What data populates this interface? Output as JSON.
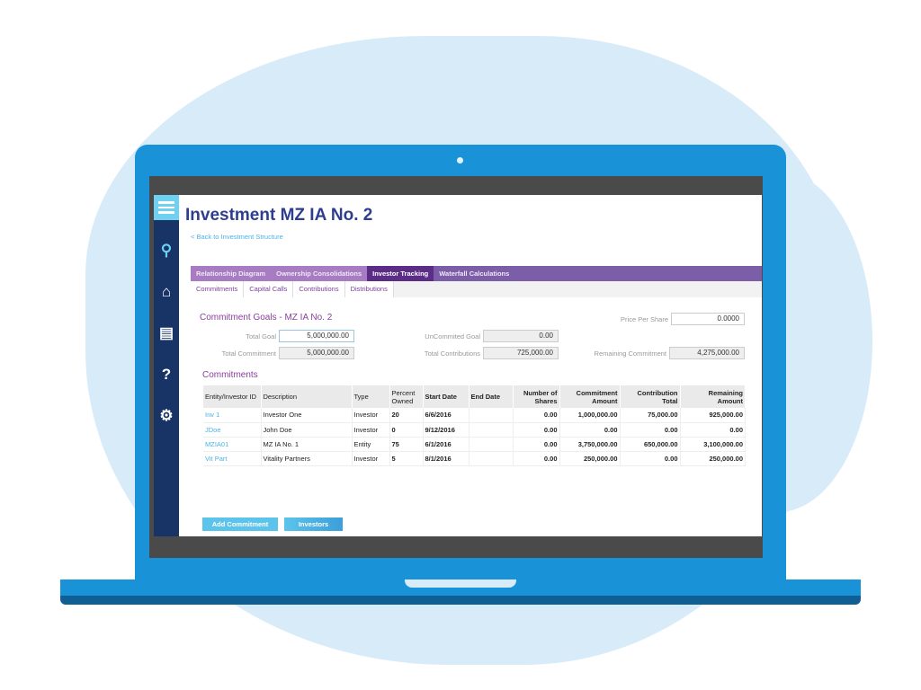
{
  "colors": {
    "brand": "#2e3e8f",
    "tab_bar": "#7b5ea7",
    "tab_active": "#5b2d86",
    "sidebar": "#183366",
    "link": "#4ab3e8",
    "laptop": "#1a92d8"
  },
  "sidebar": {
    "icons": [
      "menu-icon",
      "search-icon",
      "home-icon",
      "report-icon",
      "help-icon",
      "gear-icon"
    ]
  },
  "header": {
    "title": "Investment MZ IA No. 2",
    "back_link": "< Back to Investment Structure"
  },
  "tabs": [
    {
      "label": "Relationship Diagram"
    },
    {
      "label": "Ownership Consolidations"
    },
    {
      "label": "Investor Tracking",
      "active": true
    },
    {
      "label": "Waterfall Calculations"
    }
  ],
  "subtabs": [
    {
      "label": "Commitments",
      "active": true
    },
    {
      "label": "Capital Calls"
    },
    {
      "label": "Contributions"
    },
    {
      "label": "Distributions"
    }
  ],
  "goals": {
    "heading": "Commitment Goals - MZ IA No. 2",
    "price_per_share_label": "Price Per Share",
    "price_per_share": "0.0000",
    "total_goal_label": "Total Goal",
    "total_goal": "5,000,000.00",
    "uncommitted_goal_label": "UnCommited Goal",
    "uncommitted_goal": "0.00",
    "total_commitment_label": "Total Commitment",
    "total_commitment": "5,000,000.00",
    "total_contributions_label": "Total Contributions",
    "total_contributions": "725,000.00",
    "remaining_commitment_label": "Remaining Commitment",
    "remaining_commitment": "4,275,000.00"
  },
  "commitments": {
    "heading": "Commitments",
    "columns": [
      "Entity/Investor ID",
      "Description",
      "Type",
      "Percent Owned",
      "Start Date",
      "End Date",
      "Number of Shares",
      "Commitment Amount",
      "Contribution Total",
      "Remaining Amount"
    ],
    "rows": [
      [
        "Inv 1",
        "Investor One",
        "Investor",
        "20",
        "6/6/2016",
        "",
        "0.00",
        "1,000,000.00",
        "75,000.00",
        "925,000.00"
      ],
      [
        "JDoe",
        "John Doe",
        "Investor",
        "0",
        "9/12/2016",
        "",
        "0.00",
        "0.00",
        "0.00",
        "0.00"
      ],
      [
        "MZIA01",
        "MZ IA No. 1",
        "Entity",
        "75",
        "6/1/2016",
        "",
        "0.00",
        "3,750,000.00",
        "650,000.00",
        "3,100,000.00"
      ],
      [
        "Vit Part",
        "Vitality Partners",
        "Investor",
        "5",
        "8/1/2016",
        "",
        "0.00",
        "250,000.00",
        "0.00",
        "250,000.00"
      ]
    ]
  },
  "buttons": {
    "add_commitment": "Add Commitment",
    "investors": "Investors"
  }
}
